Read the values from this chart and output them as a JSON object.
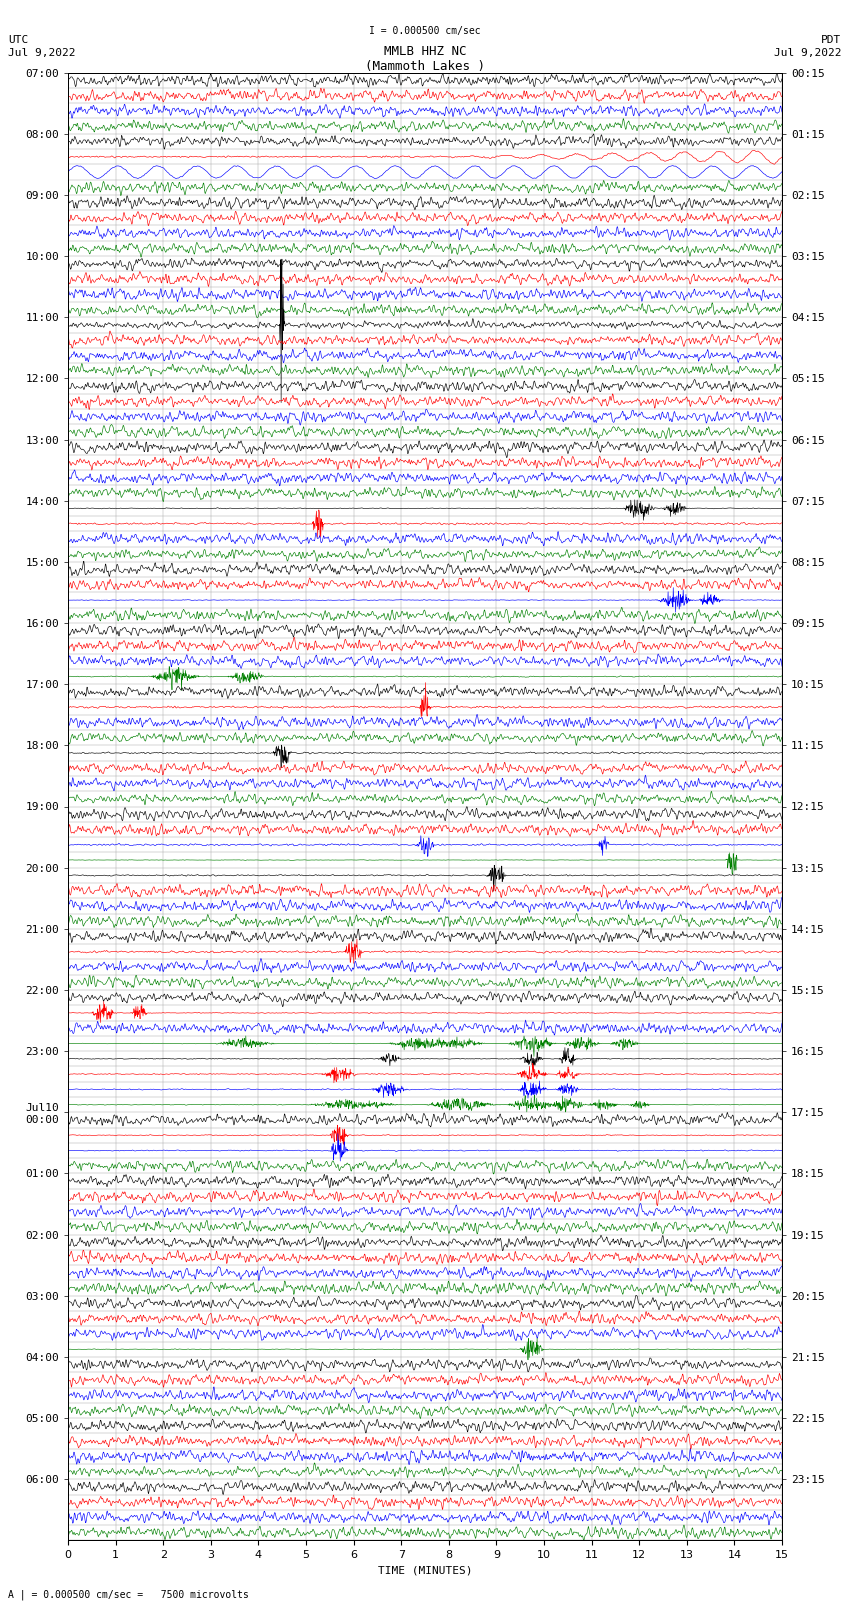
{
  "title_line1": "MMLB HHZ NC",
  "title_line2": "(Mammoth Lakes )",
  "scale_text": "I = 0.000500 cm/sec",
  "utc_label": "UTC",
  "utc_date": "Jul 9,2022",
  "pdt_label": "PDT",
  "pdt_date": "Jul 9,2022",
  "bottom_label": "A | = 0.000500 cm/sec =   7500 microvolts",
  "xlabel": "TIME (MINUTES)",
  "left_hour_labels": [
    "07:00",
    "08:00",
    "09:00",
    "10:00",
    "11:00",
    "12:00",
    "13:00",
    "14:00",
    "15:00",
    "16:00",
    "17:00",
    "18:00",
    "19:00",
    "20:00",
    "21:00",
    "22:00",
    "23:00",
    "Jul10\n00:00",
    "01:00",
    "02:00",
    "03:00",
    "04:00",
    "05:00",
    "06:00"
  ],
  "right_hour_labels": [
    "00:15",
    "01:15",
    "02:15",
    "03:15",
    "04:15",
    "05:15",
    "06:15",
    "07:15",
    "08:15",
    "09:15",
    "10:15",
    "11:15",
    "12:15",
    "13:15",
    "14:15",
    "15:15",
    "16:15",
    "17:15",
    "18:15",
    "19:15",
    "20:15",
    "21:15",
    "22:15",
    "23:15"
  ],
  "n_rows": 96,
  "n_cols": 1800,
  "minutes_per_row": 15,
  "rows_per_hour": 4,
  "colors_cycle": [
    "black",
    "red",
    "blue",
    "green"
  ],
  "bg_color": "white",
  "grid_color": "#aaaaaa",
  "title_fontsize": 9,
  "label_fontsize": 8,
  "tick_fontsize": 8
}
